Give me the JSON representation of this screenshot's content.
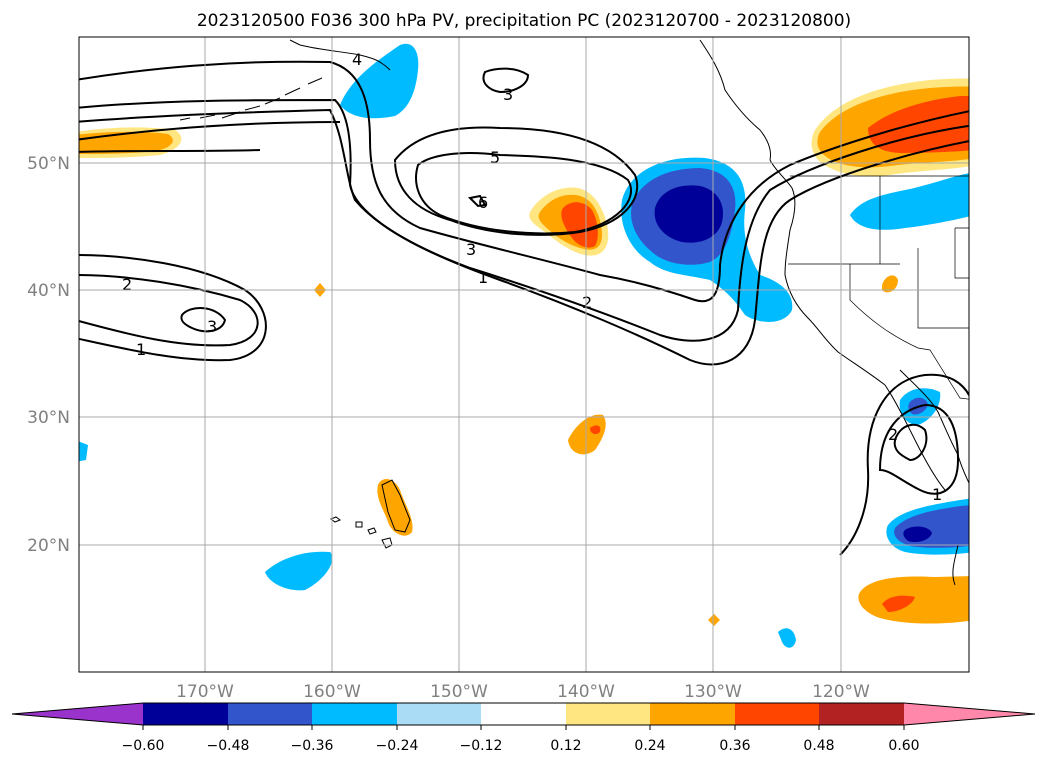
{
  "title": "2023120500 F036 300 hPa PV, precipitation PC (2023120700 - 2023120800)",
  "map": {
    "lat_labels": [
      "50°N",
      "40°N",
      "30°N",
      "20°N"
    ],
    "lon_labels": [
      "170°W",
      "160°W",
      "150°W",
      "140°W",
      "130°W",
      "120°W"
    ],
    "grid": true,
    "contour_labels": [
      "4",
      "3",
      "5",
      "6",
      "3",
      "1",
      "2",
      "2",
      "3",
      "1",
      "2",
      "1"
    ]
  },
  "colorbar": {
    "ticks": [
      "−0.60",
      "−0.48",
      "−0.36",
      "−0.24",
      "−0.12",
      "0.12",
      "0.24",
      "0.36",
      "0.48",
      "0.60"
    ],
    "colors": [
      "#9933cc",
      "#000099",
      "#3355cc",
      "#00bbff",
      "#aaddf5",
      "#ffffff",
      "#ffe680",
      "#ffa500",
      "#ff4500",
      "#b22222",
      "#ff88aa"
    ]
  },
  "colors": {
    "contour": "#000000",
    "grid": "#aaaaaa",
    "axis_label": "#808080"
  }
}
